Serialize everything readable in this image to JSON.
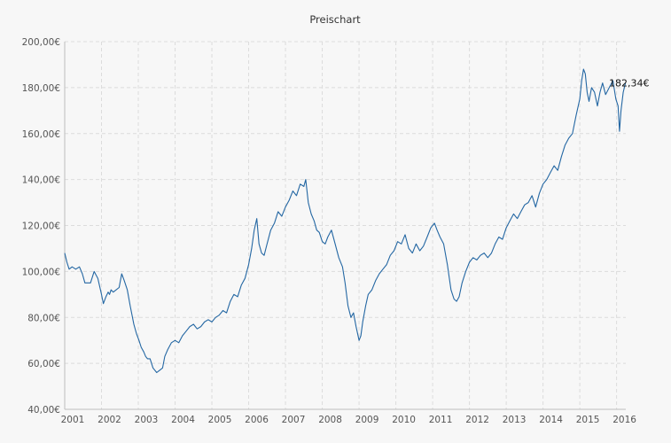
{
  "chart_data": {
    "type": "line",
    "title": "Preischart",
    "xlabel": "",
    "ylabel": "",
    "xlim": [
      2001.0,
      2016.25
    ],
    "ylim": [
      40,
      200
    ],
    "y_ticks": [
      {
        "value": 40,
        "label": "40,00€"
      },
      {
        "value": 60,
        "label": "60,00€"
      },
      {
        "value": 80,
        "label": "80,00€"
      },
      {
        "value": 100,
        "label": "100,00€"
      },
      {
        "value": 120,
        "label": "120,00€"
      },
      {
        "value": 140,
        "label": "140,00€"
      },
      {
        "value": 160,
        "label": "160,00€"
      },
      {
        "value": 180,
        "label": "180,00€"
      },
      {
        "value": 200,
        "label": "200,00€"
      }
    ],
    "x_ticks": [
      {
        "value": 2001,
        "label": "2001"
      },
      {
        "value": 2002,
        "label": "2002"
      },
      {
        "value": 2003,
        "label": "2003"
      },
      {
        "value": 2004,
        "label": "2004"
      },
      {
        "value": 2005,
        "label": "2005"
      },
      {
        "value": 2006,
        "label": "2006"
      },
      {
        "value": 2007,
        "label": "2007"
      },
      {
        "value": 2008,
        "label": "2008"
      },
      {
        "value": 2009,
        "label": "2009"
      },
      {
        "value": 2010,
        "label": "2010"
      },
      {
        "value": 2011,
        "label": "2011"
      },
      {
        "value": 2012,
        "label": "2012"
      },
      {
        "value": 2013,
        "label": "2013"
      },
      {
        "value": 2014,
        "label": "2014"
      },
      {
        "value": 2015,
        "label": "2015"
      },
      {
        "value": 2016,
        "label": "2016"
      }
    ],
    "grid": true,
    "legend": "none",
    "series_color": "#2467a3",
    "last_value_label": "182,34€",
    "series": [
      {
        "x": [
          2001.0,
          2001.06,
          2001.12,
          2001.2,
          2001.3,
          2001.4,
          2001.48,
          2001.55,
          2001.6,
          2001.7,
          2001.8,
          2001.9,
          2002.0,
          2002.05,
          2002.12,
          2002.18,
          2002.22,
          2002.26,
          2002.32,
          2002.4,
          2002.48,
          2002.55,
          2002.62,
          2002.7,
          2002.78,
          2002.88,
          2002.95,
          2003.02,
          2003.08,
          2003.15,
          2003.2,
          2003.25,
          2003.32,
          2003.4,
          2003.5,
          2003.58,
          2003.66,
          2003.72,
          2003.8,
          2003.9,
          2004.0,
          2004.1,
          2004.2,
          2004.3,
          2004.4,
          2004.5,
          2004.6,
          2004.7,
          2004.8,
          2004.9,
          2005.0,
          2005.1,
          2005.2,
          2005.3,
          2005.4,
          2005.5,
          2005.6,
          2005.7,
          2005.8,
          2005.9,
          2006.0,
          2006.08,
          2006.15,
          2006.22,
          2006.28,
          2006.35,
          2006.42,
          2006.5,
          2006.6,
          2006.7,
          2006.8,
          2006.9,
          2007.0,
          2007.1,
          2007.2,
          2007.3,
          2007.4,
          2007.5,
          2007.55,
          2007.62,
          2007.7,
          2007.78,
          2007.85,
          2007.92,
          2008.0,
          2008.08,
          2008.15,
          2008.25,
          2008.35,
          2008.45,
          2008.55,
          2008.62,
          2008.7,
          2008.78,
          2008.85,
          2008.92,
          2009.0,
          2009.05,
          2009.1,
          2009.18,
          2009.25,
          2009.35,
          2009.45,
          2009.55,
          2009.65,
          2009.75,
          2009.85,
          2009.95,
          2010.05,
          2010.15,
          2010.25,
          2010.35,
          2010.45,
          2010.55,
          2010.65,
          2010.75,
          2010.85,
          2010.95,
          2011.05,
          2011.12,
          2011.2,
          2011.3,
          2011.4,
          2011.5,
          2011.58,
          2011.65,
          2011.72,
          2011.8,
          2011.9,
          2012.0,
          2012.1,
          2012.2,
          2012.3,
          2012.4,
          2012.5,
          2012.6,
          2012.7,
          2012.8,
          2012.9,
          2013.0,
          2013.1,
          2013.2,
          2013.3,
          2013.4,
          2013.5,
          2013.6,
          2013.7,
          2013.8,
          2013.9,
          2014.0,
          2014.1,
          2014.2,
          2014.3,
          2014.4,
          2014.5,
          2014.6,
          2014.7,
          2014.8,
          2014.9,
          2015.0,
          2015.05,
          2015.1,
          2015.15,
          2015.2,
          2015.25,
          2015.32,
          2015.4,
          2015.48,
          2015.55,
          2015.62,
          2015.7,
          2015.8,
          2015.9,
          2015.98,
          2016.04,
          2016.08,
          2016.12,
          2016.18,
          2016.24
        ],
        "y": [
          108,
          104,
          101,
          102,
          101,
          102,
          99,
          95,
          95,
          95,
          100,
          97,
          90,
          86,
          89,
          91,
          90,
          92,
          91,
          92,
          93,
          99,
          96,
          92,
          85,
          77,
          73,
          70,
          67,
          65,
          63,
          62,
          62,
          58,
          56,
          57,
          58,
          63,
          66,
          69,
          70,
          69,
          72,
          74,
          76,
          77,
          75,
          76,
          78,
          79,
          78,
          80,
          81,
          83,
          82,
          87,
          90,
          89,
          94,
          97,
          103,
          110,
          118,
          123,
          112,
          108,
          107,
          112,
          118,
          121,
          126,
          124,
          128,
          131,
          135,
          133,
          138,
          137,
          140,
          130,
          125,
          122,
          118,
          117,
          113,
          112,
          115,
          118,
          112,
          106,
          102,
          95,
          85,
          80,
          82,
          76,
          70,
          72,
          78,
          85,
          90,
          92,
          96,
          99,
          101,
          103,
          107,
          109,
          113,
          112,
          116,
          110,
          108,
          112,
          109,
          111,
          115,
          119,
          121,
          118,
          115,
          112,
          103,
          92,
          88,
          87,
          89,
          95,
          100,
          104,
          106,
          105,
          107,
          108,
          106,
          108,
          112,
          115,
          114,
          119,
          122,
          125,
          123,
          126,
          129,
          130,
          133,
          128,
          134,
          138,
          140,
          143,
          146,
          144,
          150,
          155,
          158,
          160,
          168,
          175,
          183,
          188,
          186,
          178,
          174,
          180,
          178,
          172,
          178,
          182,
          177,
          180,
          183,
          175,
          172,
          161,
          170,
          178,
          182
        ]
      }
    ]
  }
}
